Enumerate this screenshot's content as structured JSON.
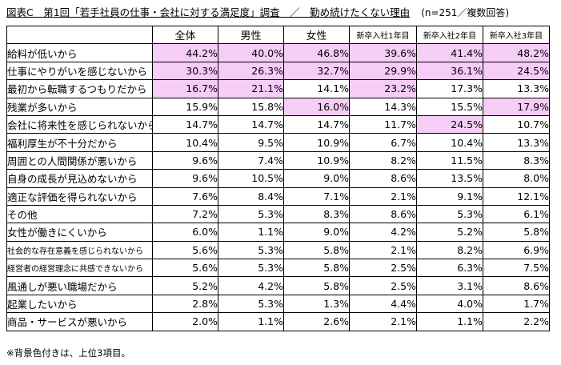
{
  "title": {
    "main": "図表C　第1回「若手社員の仕事・会社に対する満足度」調査　／　勤め続けたくない理由",
    "meta": "(n=251／複数回答)"
  },
  "chart_data": {
    "type": "table",
    "columns": [
      "全体",
      "男性",
      "女性",
      "新卒入社1年目",
      "新卒入社2年目",
      "新卒入社3年目"
    ],
    "rows": [
      {
        "label": "給料が低いから",
        "values": [
          "44.2%",
          "40.0%",
          "46.8%",
          "39.6%",
          "41.4%",
          "48.2%"
        ],
        "highlight": [
          true,
          true,
          true,
          true,
          true,
          true
        ]
      },
      {
        "label": "仕事にやりがいを感じないから",
        "values": [
          "30.3%",
          "26.3%",
          "32.7%",
          "29.9%",
          "36.1%",
          "24.5%"
        ],
        "highlight": [
          true,
          true,
          true,
          true,
          true,
          true
        ]
      },
      {
        "label": "最初から転職するつもりだから",
        "values": [
          "16.7%",
          "21.1%",
          "14.1%",
          "23.2%",
          "17.3%",
          "13.3%"
        ],
        "highlight": [
          true,
          true,
          false,
          true,
          false,
          false
        ]
      },
      {
        "label": "残業が多いから",
        "values": [
          "15.9%",
          "15.8%",
          "16.0%",
          "14.3%",
          "15.5%",
          "17.9%"
        ],
        "highlight": [
          false,
          false,
          true,
          false,
          false,
          true
        ]
      },
      {
        "label": "会社に将来性を感じられないから",
        "values": [
          "14.7%",
          "14.7%",
          "14.7%",
          "11.7%",
          "24.5%",
          "10.7%"
        ],
        "highlight": [
          false,
          false,
          false,
          false,
          true,
          false
        ]
      },
      {
        "label": "福利厚生が不十分だから",
        "values": [
          "10.4%",
          "9.5%",
          "10.9%",
          "6.7%",
          "10.4%",
          "13.3%"
        ],
        "highlight": [
          false,
          false,
          false,
          false,
          false,
          false
        ]
      },
      {
        "label": "周囲との人間関係が悪いから",
        "values": [
          "9.6%",
          "7.4%",
          "10.9%",
          "8.2%",
          "11.5%",
          "8.3%"
        ],
        "highlight": [
          false,
          false,
          false,
          false,
          false,
          false
        ]
      },
      {
        "label": "自身の成長が見込めないから",
        "values": [
          "9.6%",
          "10.5%",
          "9.0%",
          "8.6%",
          "13.5%",
          "8.0%"
        ],
        "highlight": [
          false,
          false,
          false,
          false,
          false,
          false
        ]
      },
      {
        "label": "適正な評価を得られないから",
        "values": [
          "7.6%",
          "8.4%",
          "7.1%",
          "2.1%",
          "9.1%",
          "12.1%"
        ],
        "highlight": [
          false,
          false,
          false,
          false,
          false,
          false
        ]
      },
      {
        "label": "その他",
        "values": [
          "7.2%",
          "5.3%",
          "8.3%",
          "8.6%",
          "5.3%",
          "6.1%"
        ],
        "highlight": [
          false,
          false,
          false,
          false,
          false,
          false
        ]
      },
      {
        "label": "女性が働きにくいから",
        "values": [
          "6.0%",
          "1.1%",
          "9.0%",
          "4.2%",
          "5.2%",
          "5.8%"
        ],
        "highlight": [
          false,
          false,
          false,
          false,
          false,
          false
        ]
      },
      {
        "label": "社会的な存在意義を感じられないから",
        "values": [
          "5.6%",
          "5.3%",
          "5.8%",
          "2.1%",
          "8.2%",
          "6.9%"
        ],
        "highlight": [
          false,
          false,
          false,
          false,
          false,
          false
        ]
      },
      {
        "label": "経営者の経営理念に共感できないから",
        "values": [
          "5.6%",
          "5.3%",
          "5.8%",
          "2.5%",
          "6.3%",
          "7.5%"
        ],
        "highlight": [
          false,
          false,
          false,
          false,
          false,
          false
        ]
      },
      {
        "label": "風通しが悪い職場だから",
        "values": [
          "5.2%",
          "4.2%",
          "5.8%",
          "2.5%",
          "3.1%",
          "8.6%"
        ],
        "highlight": [
          false,
          false,
          false,
          false,
          false,
          false
        ]
      },
      {
        "label": "起業したいから",
        "values": [
          "2.8%",
          "5.3%",
          "1.3%",
          "4.4%",
          "4.0%",
          "1.7%"
        ],
        "highlight": [
          false,
          false,
          false,
          false,
          false,
          false
        ]
      },
      {
        "label": "商品・サービスが悪いから",
        "values": [
          "2.0%",
          "1.1%",
          "2.6%",
          "2.1%",
          "1.1%",
          "2.2%"
        ],
        "highlight": [
          false,
          false,
          false,
          false,
          false,
          false
        ]
      }
    ],
    "highlight_color": "#f6cdf6"
  },
  "note": "※背景色付きは、上位3項目。"
}
